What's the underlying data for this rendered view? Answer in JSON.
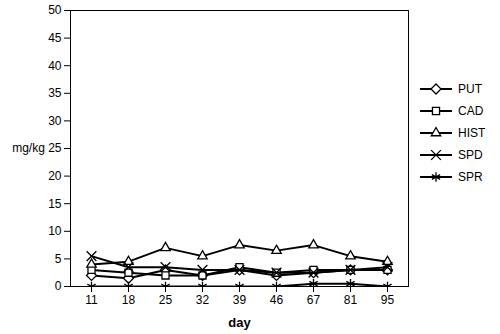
{
  "chart_data": {
    "type": "line",
    "x_label": "day",
    "y_label": "mg/kg",
    "categories": [
      "11",
      "18",
      "25",
      "32",
      "39",
      "46",
      "67",
      "81",
      "95"
    ],
    "series": [
      {
        "name": "PUT",
        "color": "#000000",
        "marker": "diamond",
        "values": [
          2,
          1.5,
          3,
          2,
          3,
          2,
          2.5,
          3,
          3
        ]
      },
      {
        "name": "CAD",
        "color": "#000000",
        "marker": "square",
        "values": [
          3,
          2.5,
          2,
          2,
          3.5,
          2.5,
          3,
          3,
          3
        ]
      },
      {
        "name": "HIST",
        "color": "#000000",
        "marker": "triangle",
        "values": [
          4,
          4.5,
          7,
          5.5,
          7.5,
          6.5,
          7.5,
          5.5,
          4.5
        ]
      },
      {
        "name": "SPD",
        "color": "#000000",
        "marker": "times",
        "values": [
          5.5,
          3.5,
          3.5,
          3,
          3,
          2.5,
          2.5,
          3,
          3.5
        ]
      },
      {
        "name": "SPR",
        "color": "#000000",
        "marker": "asterisk",
        "values": [
          0,
          0,
          0,
          0,
          0,
          0,
          0.5,
          0.5,
          0
        ]
      }
    ],
    "ylim": [
      0,
      50
    ],
    "yticks": [
      0,
      5,
      10,
      15,
      20,
      25,
      30,
      35,
      40,
      45,
      50
    ],
    "legend": "right",
    "grid": false
  }
}
